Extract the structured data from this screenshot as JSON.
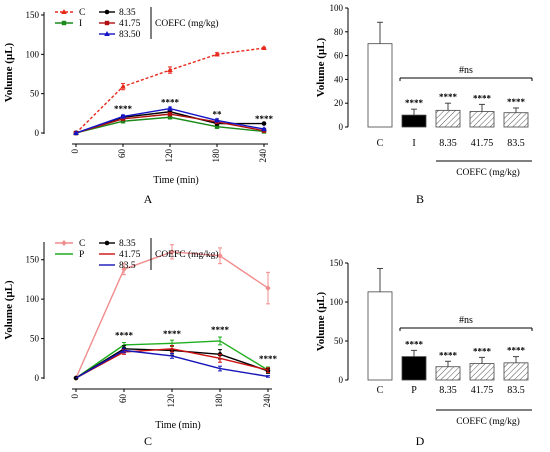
{
  "chart_data": [
    {
      "panel_label": "A",
      "type": "line",
      "x": [
        0,
        60,
        120,
        180,
        240
      ],
      "xticks": [
        "0",
        "60",
        "120",
        "180",
        "240"
      ],
      "xlabel": "Time (min)",
      "ylabel": "Volume (µL)",
      "yticks": [
        "0",
        "50",
        "100",
        "150"
      ],
      "ylim": [
        0,
        150
      ],
      "legend_group_label": "COEFC (mg/kg)",
      "series": [
        {
          "name": "C",
          "color": "#e8291c",
          "dash": true,
          "marker": "triangle",
          "values": [
            0,
            59,
            80,
            100,
            108
          ],
          "err": [
            0,
            4,
            4,
            2,
            1
          ]
        },
        {
          "name": "I",
          "color": "#1a8a1a",
          "dash": false,
          "marker": "square",
          "values": [
            0,
            15,
            20,
            8,
            2
          ],
          "err": [
            0,
            2,
            2,
            2,
            1
          ]
        },
        {
          "name": "8.35",
          "color": "#000000",
          "dash": false,
          "marker": "circle",
          "values": [
            0,
            20,
            27,
            12,
            12
          ],
          "err": [
            0,
            2,
            2,
            2,
            1
          ]
        },
        {
          "name": "41.75",
          "color": "#b01010",
          "dash": false,
          "marker": "square",
          "values": [
            0,
            18,
            24,
            14,
            3
          ],
          "err": [
            0,
            2,
            2,
            2,
            1
          ]
        },
        {
          "name": "83.50",
          "color": "#1515c8",
          "dash": false,
          "marker": "triangle",
          "values": [
            0,
            21,
            31,
            16,
            5
          ],
          "err": [
            0,
            2,
            2,
            2,
            1
          ]
        }
      ],
      "annotations": [
        {
          "x": 60,
          "y": 27,
          "text": "****"
        },
        {
          "x": 120,
          "y": 35,
          "text": "****"
        },
        {
          "x": 180,
          "y": 20,
          "text": "**"
        },
        {
          "x": 240,
          "y": 14,
          "text": "****"
        }
      ]
    },
    {
      "panel_label": "B",
      "type": "bar",
      "categories": [
        "C",
        "I",
        "8.35",
        "41.75",
        "83.5"
      ],
      "values": [
        70,
        10,
        14,
        13,
        12
      ],
      "err": [
        18,
        5,
        6,
        6,
        4
      ],
      "fills": [
        "white",
        "black",
        "hatch",
        "hatch",
        "hatch"
      ],
      "bar_labels": [
        "",
        "****",
        "****",
        "****",
        "****"
      ],
      "ylabel": "Volume (µL)",
      "yticks": [
        "0",
        "20",
        "40",
        "60",
        "80",
        "100"
      ],
      "ylim": [
        0,
        100
      ],
      "bracket_label": "#ns",
      "group_label": "COEFC (mg/kg)"
    },
    {
      "panel_label": "C",
      "type": "line",
      "x": [
        0,
        60,
        120,
        180,
        240
      ],
      "xticks": [
        "0",
        "60",
        "120",
        "180",
        "240"
      ],
      "xlabel": "Time (min)",
      "ylabel": "Volume (µL)",
      "yticks": [
        "0",
        "50",
        "100",
        "150"
      ],
      "ylim": [
        0,
        175
      ],
      "legend_group_label": "COEFC (mg/kg)",
      "series": [
        {
          "name": "C",
          "color": "#f08c8c",
          "dash": false,
          "marker": "diamond",
          "values": [
            0,
            138,
            160,
            155,
            114
          ],
          "err": [
            0,
            7,
            9,
            10,
            20
          ]
        },
        {
          "name": "P",
          "color": "#1fae1f",
          "dash": false,
          "marker": "none",
          "values": [
            0,
            42,
            44,
            47,
            10
          ],
          "err": [
            0,
            3,
            4,
            5,
            4
          ]
        },
        {
          "name": "8.35",
          "color": "#000000",
          "dash": false,
          "marker": "circle",
          "values": [
            0,
            37,
            35,
            30,
            9
          ],
          "err": [
            0,
            4,
            6,
            6,
            3
          ]
        },
        {
          "name": "41.75",
          "color": "#cc1010",
          "dash": false,
          "marker": "none",
          "values": [
            0,
            33,
            37,
            25,
            10
          ],
          "err": [
            0,
            3,
            4,
            5,
            3
          ]
        },
        {
          "name": "83.5",
          "color": "#1515b8",
          "dash": false,
          "marker": "none",
          "values": [
            0,
            35,
            28,
            12,
            2
          ],
          "err": [
            0,
            3,
            3,
            3,
            1
          ]
        }
      ],
      "annotations": [
        {
          "x": 60,
          "y": 50,
          "text": "****"
        },
        {
          "x": 120,
          "y": 52,
          "text": "****"
        },
        {
          "x": 180,
          "y": 57,
          "text": "****"
        },
        {
          "x": 240,
          "y": 20,
          "text": "****"
        }
      ]
    },
    {
      "panel_label": "D",
      "type": "bar",
      "categories": [
        "C",
        "P",
        "8.35",
        "41.75",
        "83.5"
      ],
      "values": [
        113,
        30,
        17,
        21,
        22
      ],
      "err": [
        30,
        8,
        7,
        8,
        8
      ],
      "fills": [
        "white",
        "black",
        "hatch",
        "hatch",
        "hatch"
      ],
      "bar_labels": [
        "",
        "****",
        "****",
        "****",
        "****"
      ],
      "ylabel": "Volume (µL)",
      "yticks": [
        "0",
        "50",
        "100",
        "150"
      ],
      "ylim": [
        0,
        150
      ],
      "bracket_label": "#ns",
      "group_label": "COEFC (mg/kg)"
    }
  ]
}
